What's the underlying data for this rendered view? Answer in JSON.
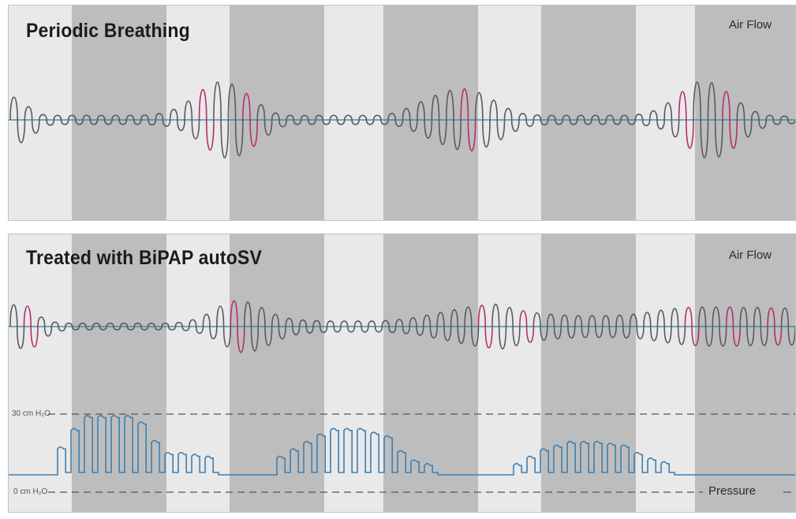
{
  "colors": {
    "band_light": "#e9e9e9",
    "band_dark": "#bdbdbd",
    "baseline": "#2f7f9a",
    "trace": "#5a5a5a",
    "trace_accent": "#b0306e",
    "pressure": "#3f7fb0",
    "dashed": "#555555"
  },
  "chart_data": [
    {
      "type": "line",
      "title": "Periodic Breathing",
      "series": [
        {
          "name": "Air Flow",
          "description_values": "cycle amplitudes (relative, 0-1)",
          "amplitudes": [
            0.6,
            0.35,
            0.14,
            0.12,
            0.12,
            0.12,
            0.12,
            0.12,
            0.12,
            0.13,
            0.17,
            0.28,
            0.5,
            0.8,
            1.0,
            0.95,
            0.7,
            0.4,
            0.18,
            0.12,
            0.12,
            0.12,
            0.12,
            0.12,
            0.12,
            0.12,
            0.17,
            0.3,
            0.48,
            0.65,
            0.78,
            0.82,
            0.72,
            0.52,
            0.3,
            0.17,
            0.13,
            0.12,
            0.12,
            0.12,
            0.12,
            0.12,
            0.12,
            0.15,
            0.24,
            0.45,
            0.75,
            1.0,
            0.98,
            0.75,
            0.45,
            0.22,
            0.12,
            0.1
          ]
        }
      ]
    },
    {
      "type": "line",
      "title": "Treated with BiPAP autoSV",
      "series": [
        {
          "name": "Air Flow",
          "amplitudes": [
            0.8,
            0.75,
            0.35,
            0.16,
            0.12,
            0.12,
            0.12,
            0.12,
            0.12,
            0.12,
            0.12,
            0.12,
            0.15,
            0.25,
            0.45,
            0.75,
            0.95,
            0.9,
            0.7,
            0.45,
            0.3,
            0.24,
            0.22,
            0.2,
            0.2,
            0.2,
            0.2,
            0.22,
            0.26,
            0.32,
            0.42,
            0.52,
            0.62,
            0.72,
            0.78,
            0.82,
            0.7,
            0.58,
            0.5,
            0.45,
            0.42,
            0.4,
            0.4,
            0.4,
            0.42,
            0.45,
            0.52,
            0.6,
            0.66,
            0.7,
            0.72,
            0.72,
            0.72,
            0.7,
            0.7,
            0.68,
            0.68
          ]
        },
        {
          "name": "Pressure",
          "description_values": "pressure burst heights relative to 0-30 cm H2O span (fraction)",
          "bursts": [
            [
              0.28,
              0.48,
              0.62,
              0.62,
              0.62,
              0.62,
              0.55,
              0.35,
              0.22,
              0.22,
              0.2,
              0.18
            ],
            [
              0.18,
              0.26,
              0.34,
              0.42,
              0.48,
              0.48,
              0.48,
              0.44,
              0.4,
              0.24,
              0.14,
              0.1
            ],
            [
              0.1,
              0.18,
              0.26,
              0.3,
              0.34,
              0.34,
              0.34,
              0.32,
              0.3,
              0.22,
              0.16,
              0.12
            ]
          ]
        }
      ]
    }
  ],
  "top": {
    "title": "Periodic Breathing",
    "airflow_label": "Air Flow"
  },
  "bottom": {
    "title": "Treated with BiPAP autoSV",
    "airflow_label": "Air Flow",
    "pressure_label": "Pressure",
    "pressure_max_label": "30 cm H₂O",
    "pressure_min_label": "0 cm H₂O"
  }
}
